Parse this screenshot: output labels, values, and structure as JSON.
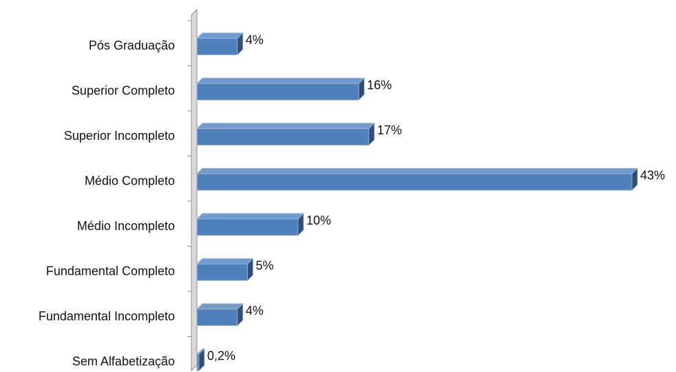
{
  "chart_data": {
    "type": "bar",
    "orientation": "horizontal",
    "title": "",
    "xlabel": "",
    "ylabel": "",
    "categories": [
      "Pós Graduação",
      "Superior Completo",
      "Superior Incompleto",
      "Médio Completo",
      "Médio Incompleto",
      "Fundamental Completo",
      "Fundamental Incompleto",
      "Sem Alfabetização"
    ],
    "values": [
      4,
      16,
      17,
      43,
      10,
      5,
      4,
      0.2
    ],
    "value_labels": [
      "4%",
      "16%",
      "17%",
      "43%",
      "10%",
      "5%",
      "4%",
      "0,2%"
    ],
    "xlim": [
      0,
      43
    ],
    "legend": "none",
    "grid": false,
    "style": "3d",
    "colors": {
      "bar_front": "#4f81bd",
      "bar_top": "#6f9bd0",
      "bar_side": "#2f4f78",
      "bar_edge": "#aab8c9",
      "wall": "#d9d9d9",
      "axis": "#8c8c8c"
    }
  }
}
